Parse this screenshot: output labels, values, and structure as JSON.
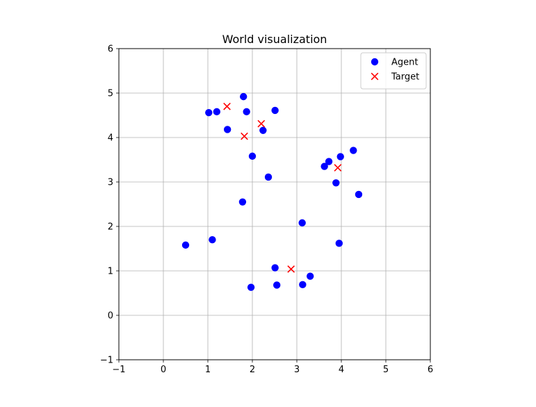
{
  "chart_data": {
    "type": "scatter",
    "title": "World visualization",
    "xlabel": "",
    "ylabel": "",
    "xlim": [
      -1,
      6
    ],
    "ylim": [
      -1,
      6
    ],
    "xticks": [
      -1,
      0,
      1,
      2,
      3,
      4,
      5,
      6
    ],
    "yticks": [
      -1,
      0,
      1,
      2,
      3,
      4,
      5,
      6
    ],
    "grid": true,
    "legend_position": "top-right",
    "series": [
      {
        "name": "Agent",
        "marker": "circle",
        "color": "#0000ff",
        "points": [
          [
            1.8,
            4.92
          ],
          [
            1.02,
            4.56
          ],
          [
            1.2,
            4.58
          ],
          [
            1.87,
            4.58
          ],
          [
            2.51,
            4.61
          ],
          [
            1.44,
            4.18
          ],
          [
            2.24,
            4.16
          ],
          [
            2.0,
            3.58
          ],
          [
            2.36,
            3.11
          ],
          [
            1.78,
            2.55
          ],
          [
            3.62,
            3.35
          ],
          [
            3.72,
            3.46
          ],
          [
            3.98,
            3.57
          ],
          [
            4.27,
            3.71
          ],
          [
            3.88,
            2.98
          ],
          [
            4.39,
            2.72
          ],
          [
            3.12,
            2.08
          ],
          [
            3.95,
            1.62
          ],
          [
            0.5,
            1.58
          ],
          [
            1.1,
            1.7
          ],
          [
            2.51,
            1.07
          ],
          [
            3.3,
            0.88
          ],
          [
            1.97,
            0.63
          ],
          [
            2.55,
            0.68
          ],
          [
            3.13,
            0.69
          ]
        ]
      },
      {
        "name": "Target",
        "marker": "x",
        "color": "#ff0000",
        "points": [
          [
            1.43,
            4.7
          ],
          [
            2.2,
            4.31
          ],
          [
            1.82,
            4.03
          ],
          [
            3.92,
            3.32
          ],
          [
            2.87,
            1.04
          ]
        ]
      }
    ]
  }
}
